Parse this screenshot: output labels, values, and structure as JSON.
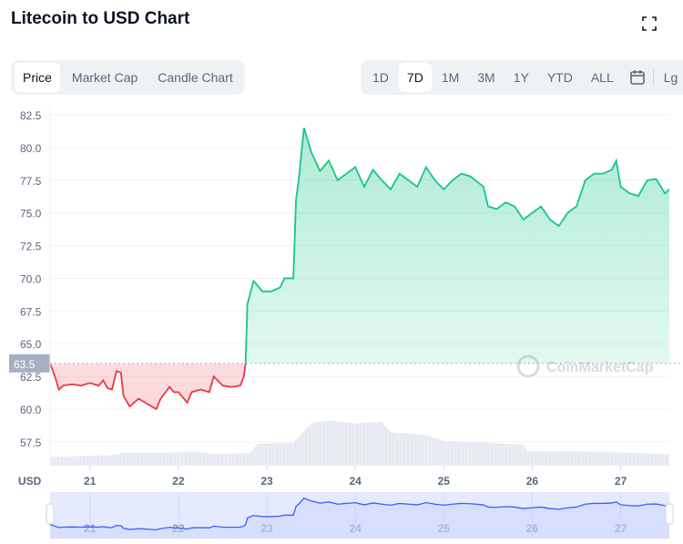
{
  "title": "Litecoin to USD Chart",
  "tabs": [
    "Price",
    "Market Cap",
    "Candle Chart"
  ],
  "ranges": [
    "1D",
    "7D",
    "1M",
    "3M",
    "1Y",
    "YTD",
    "ALL"
  ],
  "log_label": "Lg",
  "watermark": "CoinMarketCap",
  "colors": {
    "up": "#16c784",
    "down": "#ea3943",
    "navigator": "#3861fb"
  },
  "chart_data": {
    "type": "area",
    "xlabel": "",
    "ylabel": "USD",
    "ylim": [
      55.5,
      83
    ],
    "xlim": [
      20.55,
      27.55
    ],
    "y_ticks": [
      "57.5",
      "60.0",
      "62.5",
      "65.0",
      "67.5",
      "70.0",
      "72.5",
      "75.0",
      "77.5",
      "80.0",
      "82.5"
    ],
    "x_ticks": [
      "21",
      "22",
      "23",
      "24",
      "25",
      "26",
      "27"
    ],
    "baseline": 63.5,
    "baseline_label": "63.5",
    "grid": true,
    "series": [
      {
        "x": [
          20.55,
          20.6,
          20.65,
          20.7,
          20.8,
          20.9,
          21.0,
          21.1,
          21.15,
          21.2,
          21.25,
          21.3,
          21.35,
          21.38,
          21.45,
          21.55,
          21.6,
          21.65,
          21.75,
          21.8,
          21.9,
          21.95,
          22.0,
          22.1,
          22.15,
          22.25,
          22.35,
          22.4,
          22.5,
          22.6,
          22.7,
          22.74,
          22.76,
          22.78,
          22.85,
          22.95,
          23.05,
          23.15,
          23.2,
          23.3,
          23.33,
          23.36,
          23.42,
          23.5,
          23.6,
          23.7,
          23.8,
          23.9,
          24.0,
          24.1,
          24.2,
          24.3,
          24.4,
          24.5,
          24.6,
          24.7,
          24.8,
          24.9,
          25.0,
          25.1,
          25.2,
          25.3,
          25.45,
          25.5,
          25.6,
          25.7,
          25.8,
          25.9,
          26.0,
          26.1,
          26.2,
          26.3,
          26.4,
          26.5,
          26.6,
          26.7,
          26.8,
          26.9,
          26.95,
          27.0,
          27.1,
          27.2,
          27.3,
          27.4,
          27.5,
          27.55
        ],
        "y": [
          63.5,
          62.6,
          61.5,
          61.8,
          61.9,
          61.8,
          62.0,
          61.8,
          62.2,
          61.6,
          61.5,
          62.9,
          62.8,
          61.0,
          60.2,
          60.8,
          60.6,
          60.4,
          60.0,
          60.8,
          61.7,
          61.3,
          61.3,
          60.5,
          61.3,
          61.5,
          61.3,
          62.5,
          61.8,
          61.7,
          61.8,
          62.5,
          63.5,
          68.0,
          69.8,
          69.0,
          69.0,
          69.3,
          70.0,
          70.0,
          76.0,
          77.5,
          81.5,
          79.7,
          78.2,
          79.0,
          77.5,
          78.0,
          78.5,
          77.0,
          78.3,
          77.5,
          76.8,
          78.0,
          77.5,
          77.0,
          78.5,
          77.5,
          76.8,
          77.5,
          78.0,
          77.8,
          77.0,
          75.5,
          75.3,
          75.8,
          75.5,
          74.5,
          75.0,
          75.5,
          74.5,
          74.0,
          75.0,
          75.5,
          77.5,
          78.0,
          78.0,
          78.3,
          79.0,
          77.0,
          76.5,
          76.3,
          77.5,
          77.6,
          76.5,
          76.8
        ]
      }
    ],
    "volume": {
      "x": [
        20.55,
        20.8,
        21.2,
        21.4,
        21.8,
        22.2,
        22.4,
        22.8,
        22.9,
        23.3,
        23.5,
        23.7,
        24.0,
        24.3,
        24.4,
        24.8,
        25.0,
        25.4,
        25.9,
        25.95,
        26.5,
        27.0,
        27.55
      ],
      "y": [
        0.3,
        0.32,
        0.35,
        0.45,
        0.44,
        0.48,
        0.4,
        0.42,
        0.75,
        0.78,
        1.45,
        1.55,
        1.45,
        1.5,
        1.15,
        1.05,
        0.85,
        0.8,
        0.72,
        0.5,
        0.5,
        0.45,
        0.4
      ]
    }
  }
}
